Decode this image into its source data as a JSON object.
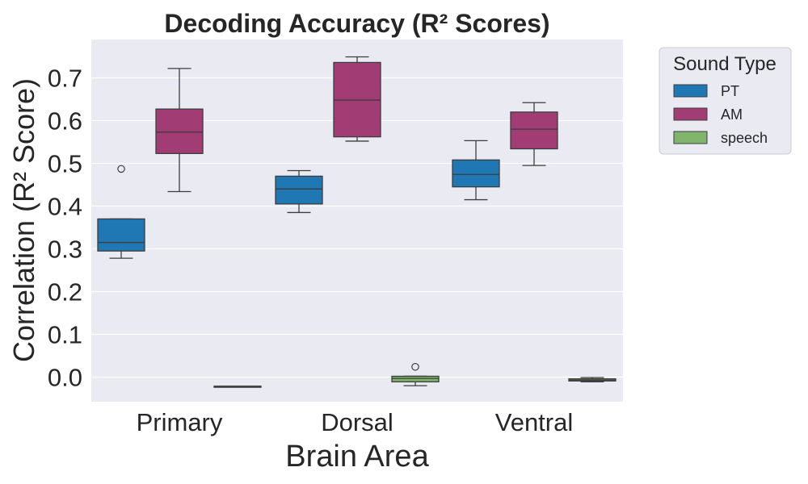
{
  "chart_data": {
    "type": "box",
    "title": "Decoding Accuracy (R² Scores)",
    "xlabel": "Brain Area",
    "ylabel": "Correlation (R² Score)",
    "categories": [
      "Primary",
      "Dorsal",
      "Ventral"
    ],
    "ylim": [
      -0.06,
      0.79
    ],
    "yticks": [
      "0.0",
      "0.1",
      "0.2",
      "0.3",
      "0.4",
      "0.5",
      "0.6",
      "0.7"
    ],
    "grid": true,
    "legend": {
      "title": "Sound Type",
      "position": "outside-right"
    },
    "series": [
      {
        "name": "PT",
        "color": "#1f77b4",
        "boxes": [
          {
            "category": "Primary",
            "whisker_low": 0.278,
            "q1": 0.295,
            "median": 0.315,
            "q3": 0.37,
            "whisker_high": 0.37,
            "outliers": [
              0.487
            ]
          },
          {
            "category": "Dorsal",
            "whisker_low": 0.385,
            "q1": 0.405,
            "median": 0.44,
            "q3": 0.47,
            "whisker_high": 0.483,
            "outliers": []
          },
          {
            "category": "Ventral",
            "whisker_low": 0.415,
            "q1": 0.445,
            "median": 0.474,
            "q3": 0.508,
            "whisker_high": 0.553,
            "outliers": []
          }
        ]
      },
      {
        "name": "AM",
        "color": "#a23c74",
        "boxes": [
          {
            "category": "Primary",
            "whisker_low": 0.434,
            "q1": 0.523,
            "median": 0.573,
            "q3": 0.627,
            "whisker_high": 0.722,
            "outliers": []
          },
          {
            "category": "Dorsal",
            "whisker_low": 0.552,
            "q1": 0.562,
            "median": 0.648,
            "q3": 0.736,
            "whisker_high": 0.749,
            "outliers": []
          },
          {
            "category": "Ventral",
            "whisker_low": 0.495,
            "q1": 0.534,
            "median": 0.58,
            "q3": 0.62,
            "whisker_high": 0.642,
            "outliers": []
          }
        ]
      },
      {
        "name": "speech",
        "color": "#7fb66b",
        "boxes": [
          {
            "category": "Primary",
            "whisker_low": -0.021,
            "q1": -0.021,
            "median": -0.021,
            "q3": -0.021,
            "whisker_high": -0.021,
            "outliers": []
          },
          {
            "category": "Dorsal",
            "whisker_low": -0.02,
            "q1": -0.011,
            "median": -0.003,
            "q3": 0.002,
            "whisker_high": 0.002,
            "outliers": [
              0.024
            ]
          },
          {
            "category": "Ventral",
            "whisker_low": -0.011,
            "q1": -0.009,
            "median": -0.007,
            "q3": -0.004,
            "whisker_high": -0.001,
            "outliers": []
          }
        ]
      }
    ]
  }
}
